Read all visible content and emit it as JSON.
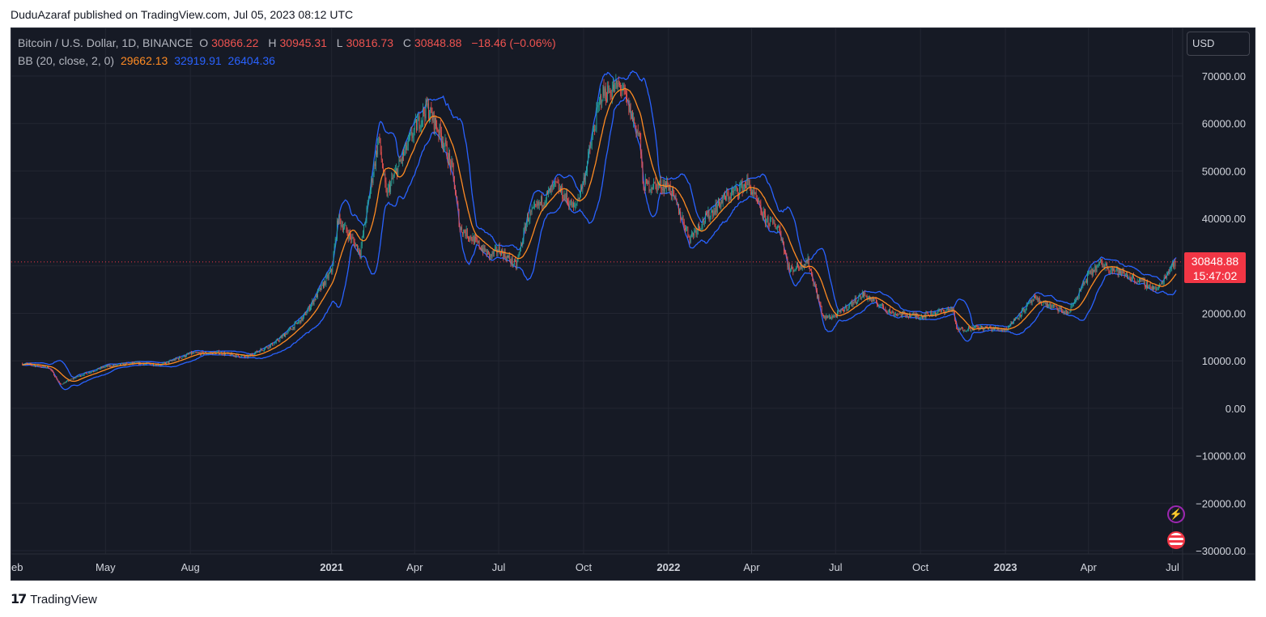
{
  "publish_line": "DuduAzaraf published on TradingView.com, Jul 05, 2023 08:12 UTC",
  "brand": "TradingView",
  "header": {
    "symbol": "Bitcoin / U.S. Dollar, 1D, BINANCE",
    "open_label": "O",
    "open": "30866.22",
    "high_label": "H",
    "high": "30945.31",
    "low_label": "L",
    "low": "30816.73",
    "close_label": "C",
    "close": "30848.88",
    "change": "−18.46 (−0.06%)"
  },
  "indicator": {
    "label": "BB (20, close, 2, 0)",
    "basis": "29662.13",
    "upper": "32919.91",
    "lower": "26404.36"
  },
  "currency": "USD",
  "last_price": {
    "price": "30848.88",
    "countdown": "15:47:02"
  },
  "colors": {
    "background": "#161a25",
    "grid": "#232632",
    "up_candle": "#26a69a",
    "down_candle": "#ef5350",
    "basis": "#ff8b22",
    "bands": "#2962ff",
    "price_line": "#f23645",
    "axis_text": "#d1d4dc"
  },
  "icons": [
    "flash-icon",
    "us-flag-icon",
    "tradingview-logo-icon"
  ],
  "chart_data": {
    "type": "candlestick",
    "interval": "1D",
    "x_axis_labels": [
      {
        "label": "eb",
        "date": "2020-02"
      },
      {
        "label": "May",
        "date": "2020-05"
      },
      {
        "label": "Aug",
        "date": "2020-08"
      },
      {
        "label": "2021",
        "date": "2021-01",
        "bold": true
      },
      {
        "label": "Apr",
        "date": "2021-04"
      },
      {
        "label": "Jul",
        "date": "2021-07"
      },
      {
        "label": "Oct",
        "date": "2021-10"
      },
      {
        "label": "2022",
        "date": "2022-01",
        "bold": true
      },
      {
        "label": "Apr",
        "date": "2022-04"
      },
      {
        "label": "Jul",
        "date": "2022-07"
      },
      {
        "label": "Oct",
        "date": "2022-10"
      },
      {
        "label": "2023",
        "date": "2023-01",
        "bold": true
      },
      {
        "label": "Apr",
        "date": "2023-04"
      },
      {
        "label": "Jul",
        "date": "2023-07"
      }
    ],
    "y_ticks": [
      "70000.00",
      "60000.00",
      "50000.00",
      "40000.00",
      "30000.00",
      "20000.00",
      "10000.00",
      "0.00",
      "−10000.00",
      "−20000.00",
      "−30000.00"
    ],
    "ylim": [
      -30000,
      70000
    ],
    "grid": true,
    "series": [
      {
        "name": "Bitcoin / U.S. Dollar",
        "type": "candlestick",
        "approx_close_path": [
          [
            "2020-02-01",
            9400
          ],
          [
            "2020-03-01",
            8600
          ],
          [
            "2020-03-13",
            5000
          ],
          [
            "2020-04-01",
            6700
          ],
          [
            "2020-05-01",
            8800
          ],
          [
            "2020-06-01",
            9500
          ],
          [
            "2020-07-01",
            9200
          ],
          [
            "2020-08-01",
            11500
          ],
          [
            "2020-09-01",
            11700
          ],
          [
            "2020-10-01",
            10800
          ],
          [
            "2020-11-01",
            13800
          ],
          [
            "2020-12-01",
            19000
          ],
          [
            "2021-01-01",
            29000
          ],
          [
            "2021-01-08",
            40000
          ],
          [
            "2021-02-01",
            33000
          ],
          [
            "2021-02-21",
            57000
          ],
          [
            "2021-03-01",
            45000
          ],
          [
            "2021-04-01",
            58800
          ],
          [
            "2021-04-14",
            63500
          ],
          [
            "2021-05-01",
            57000
          ],
          [
            "2021-05-12",
            50000
          ],
          [
            "2021-05-20",
            38000
          ],
          [
            "2021-06-01",
            36000
          ],
          [
            "2021-06-22",
            32000
          ],
          [
            "2021-07-01",
            33500
          ],
          [
            "2021-07-20",
            30000
          ],
          [
            "2021-08-01",
            40000
          ],
          [
            "2021-09-01",
            47000
          ],
          [
            "2021-09-21",
            42000
          ],
          [
            "2021-10-01",
            48000
          ],
          [
            "2021-10-20",
            66000
          ],
          [
            "2021-11-10",
            68000
          ],
          [
            "2021-12-01",
            57000
          ],
          [
            "2021-12-04",
            47000
          ],
          [
            "2022-01-01",
            47000
          ],
          [
            "2022-01-24",
            36000
          ],
          [
            "2022-02-01",
            38000
          ],
          [
            "2022-03-01",
            44000
          ],
          [
            "2022-03-28",
            47500
          ],
          [
            "2022-04-15",
            40000
          ],
          [
            "2022-05-01",
            38000
          ],
          [
            "2022-05-12",
            29000
          ],
          [
            "2022-06-01",
            31000
          ],
          [
            "2022-06-18",
            19000
          ],
          [
            "2022-07-01",
            19500
          ],
          [
            "2022-07-31",
            24000
          ],
          [
            "2022-09-01",
            20000
          ],
          [
            "2022-10-01",
            19400
          ],
          [
            "2022-11-05",
            21000
          ],
          [
            "2022-11-09",
            16500
          ],
          [
            "2022-12-01",
            17000
          ],
          [
            "2023-01-01",
            16600
          ],
          [
            "2023-02-01",
            23000
          ],
          [
            "2023-03-10",
            20000
          ],
          [
            "2023-04-01",
            28000
          ],
          [
            "2023-04-14",
            30500
          ],
          [
            "2023-05-01",
            29000
          ],
          [
            "2023-06-15",
            25000
          ],
          [
            "2023-07-01",
            30500
          ],
          [
            "2023-07-05",
            30848.88
          ]
        ]
      },
      {
        "name": "BB basis",
        "role": "sma20",
        "last": 29662.13
      },
      {
        "name": "BB upper",
        "role": "upper_band",
        "last": 32919.91
      },
      {
        "name": "BB lower",
        "role": "lower_band",
        "last": 26404.36
      }
    ],
    "last_price_line": 30848.88
  }
}
